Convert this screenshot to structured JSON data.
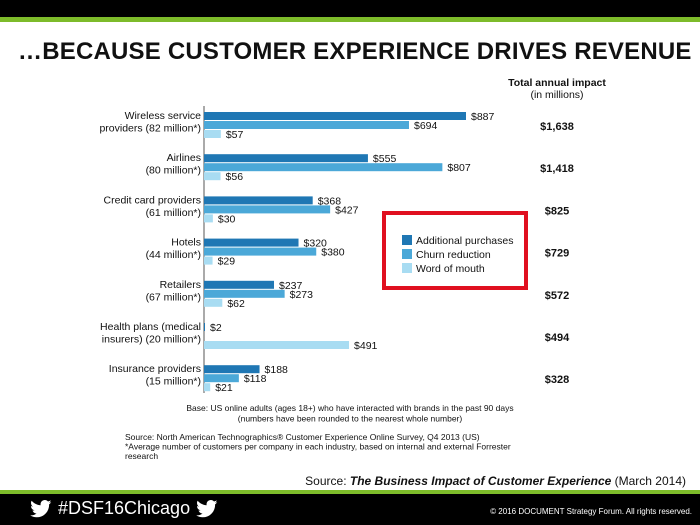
{
  "headline": "…BECAUSE CUSTOMER EXPERIENCE DRIVES REVENUE",
  "source": {
    "prefix": "Source: ",
    "title": "The Business Impact of Customer Experience",
    "suffix": " (March 2014)"
  },
  "footer": {
    "hashtag": "#DSF16Chicago",
    "copyright": "© 2016 DOCUMENT Strategy Forum. All rights reserved."
  },
  "colors": {
    "additional": "#1f77b4",
    "churn": "#4ba8d8",
    "word": "#a8dcf2",
    "highlight": "#e01020",
    "accent": "#7dbb2a"
  },
  "chart_data": {
    "type": "bar",
    "orientation": "horizontal",
    "total_header": [
      "Total annual impact",
      "(in millions)"
    ],
    "categories": [
      {
        "lines": [
          "Wireless service",
          "providers (82 million*)"
        ],
        "total": "$1,638"
      },
      {
        "lines": [
          "Airlines",
          "(80 million*)"
        ],
        "total": "$1,418"
      },
      {
        "lines": [
          "Credit card providers",
          "(61 million*)"
        ],
        "total": "$825"
      },
      {
        "lines": [
          "Hotels",
          "(44 million*)"
        ],
        "total": "$729"
      },
      {
        "lines": [
          "Retailers",
          "(67 million*)"
        ],
        "total": "$572"
      },
      {
        "lines": [
          "Health plans (medical",
          "insurers) (20 million*)"
        ],
        "total": "$494"
      },
      {
        "lines": [
          "Insurance providers",
          "(15 million*)"
        ],
        "total": "$328"
      }
    ],
    "series": [
      {
        "name": "Additional purchases",
        "values": [
          887,
          555,
          368,
          320,
          237,
          2,
          188
        ],
        "labels": [
          "$887",
          "$555",
          "$368",
          "$320",
          "$237",
          "$2",
          "$188"
        ]
      },
      {
        "name": "Churn reduction",
        "values": [
          694,
          807,
          427,
          380,
          273,
          0,
          118
        ],
        "labels": [
          "$694",
          "$807",
          "$427",
          "$380",
          "$273",
          "",
          "$118"
        ]
      },
      {
        "name": "Word of mouth",
        "values": [
          57,
          56,
          30,
          29,
          62,
          491,
          21
        ],
        "labels": [
          "$57",
          "$56",
          "$30",
          "$29",
          "$62",
          "$491",
          "$21"
        ]
      }
    ],
    "xlim": [
      0,
      900
    ],
    "notes": [
      "Base: US online adults (ages 18+) who have interacted with brands in the past 90 days",
      "(numbers have been rounded to the nearest whole number)"
    ],
    "sources": [
      "Source: North American Technographics® Customer Experience Online Survey, Q4 2013 (US)",
      "*Average number of customers per company in each industry, based on internal and external Forrester",
      "research"
    ]
  }
}
